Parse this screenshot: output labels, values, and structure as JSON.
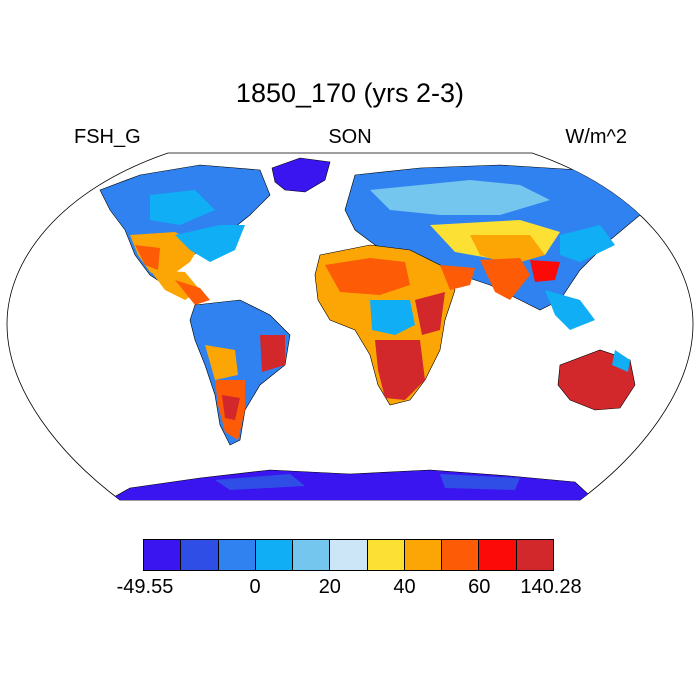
{
  "title": "1850_170 (yrs 2-3)",
  "left_label": "FSH_G",
  "center_label": "SON",
  "right_label": "W/m^2",
  "colorbar": {
    "colors": [
      "#3b15f0",
      "#2f4ee6",
      "#2f82ef",
      "#10aef5",
      "#74c6ef",
      "#cde6f7",
      "#fde034",
      "#fca606",
      "#fd5b05",
      "#fb0a08",
      "#d2272b"
    ],
    "tick_labels": [
      "-49.55",
      "0",
      "20",
      "40",
      "60",
      "140.28"
    ],
    "tick_boundaries": [
      0,
      3,
      5,
      7,
      9,
      11
    ]
  },
  "chart_data": {
    "type": "heatmap",
    "title": "1850_170 (yrs 2-3)",
    "variable": "FSH_G",
    "season": "SON",
    "units": "W/m^2",
    "projection": "Robinson",
    "value_range": [
      -49.55,
      140.28
    ],
    "contour_levels": [
      -49.55,
      -20,
      -10,
      0,
      10,
      20,
      30,
      40,
      50,
      60,
      70,
      140.28
    ],
    "regions": [
      {
        "region": "Greenland",
        "category": "lowest"
      },
      {
        "region": "Antarctica",
        "category": "lowest"
      },
      {
        "region": "Northern Canada",
        "category": "low"
      },
      {
        "region": "Siberia",
        "category": "low"
      },
      {
        "region": "Eastern United States",
        "category": "low"
      },
      {
        "region": "Amazon Basin",
        "category": "low"
      },
      {
        "region": "Central Africa",
        "category": "low"
      },
      {
        "region": "Southeast Asia",
        "category": "low"
      },
      {
        "region": "Southwestern United States",
        "category": "high"
      },
      {
        "region": "Mexico",
        "category": "high"
      },
      {
        "region": "Sahara",
        "category": "high"
      },
      {
        "region": "Arabian Peninsula",
        "category": "high"
      },
      {
        "region": "Central Asia",
        "category": "high"
      },
      {
        "region": "India",
        "category": "high"
      },
      {
        "region": "Horn of Africa",
        "category": "highest"
      },
      {
        "region": "Southern Africa",
        "category": "highest"
      },
      {
        "region": "Eastern Brazil",
        "category": "highest"
      },
      {
        "region": "Argentina",
        "category": "high"
      },
      {
        "region": "Australia",
        "category": "highest"
      }
    ]
  }
}
